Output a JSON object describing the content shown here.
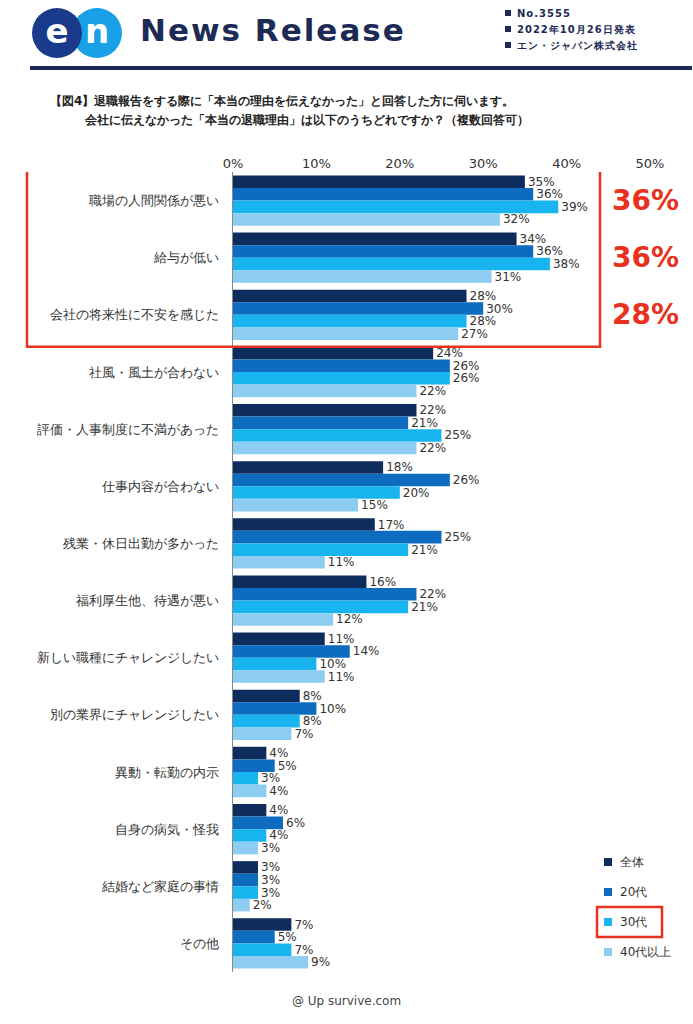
{
  "header": {
    "logo": "en",
    "title": "News Release",
    "lines": [
      "No.3555",
      "2022年10月26日発表",
      "エン・ジャパン株式会社"
    ]
  },
  "chart_data": {
    "type": "bar",
    "orientation": "horizontal",
    "title": "【図4】退職報告をする際に「本当の理由を伝えなかった」と回答した方に伺います。",
    "subtitle": "会社に伝えなかった「本当の退職理由」は以下のうちどれですか？（複数回答可）",
    "categories": [
      "職場の人間関係が悪い",
      "給与が低い",
      "会社の将来性に不安を感じた",
      "社風・風土が合わない",
      "評価・人事制度に不満があった",
      "仕事内容が合わない",
      "残業・休日出勤が多かった",
      "福利厚生他、待遇が悪い",
      "新しい職種にチャレンジしたい",
      "別の業界にチャレンジしたい",
      "異動・転勤の内示",
      "自身の病気・怪我",
      "結婚など家庭の事情",
      "その他"
    ],
    "series": [
      {
        "name": "全体",
        "color": "#0f2d5c",
        "values": [
          35,
          34,
          28,
          24,
          22,
          18,
          17,
          16,
          11,
          8,
          4,
          4,
          3,
          7
        ],
        "value_labels": [
          "35%",
          "34%",
          "28%",
          "24%",
          "22%",
          "18%",
          "17%",
          "16%",
          "11%",
          "8%",
          "4%",
          "4%",
          "3%",
          "7%"
        ]
      },
      {
        "name": "20代",
        "color": "#0d6cc0",
        "values": [
          36,
          36,
          30,
          26,
          21,
          26,
          25,
          22,
          14,
          10,
          5,
          6,
          3,
          5
        ],
        "value_labels": [
          "36%",
          "36%",
          "30%",
          "26%",
          "21%",
          "26%",
          "25%",
          "22%",
          "14%",
          "10%",
          "5%",
          "6%",
          "3%",
          "5%"
        ]
      },
      {
        "name": "30代",
        "color": "#18b4f0",
        "values": [
          39,
          38,
          28,
          26,
          25,
          20,
          21,
          21,
          10,
          8,
          3,
          4,
          3,
          7
        ],
        "value_labels": [
          "39%",
          "38%",
          "28%",
          "26%",
          "25%",
          "20%",
          "21%",
          "21%",
          "10%",
          "8%",
          "3%",
          "4%",
          "3%",
          "7%"
        ]
      },
      {
        "name": "40代以上",
        "color": "#8ecdf2",
        "values": [
          32,
          31,
          27,
          22,
          22,
          15,
          11,
          12,
          11,
          7,
          4,
          3,
          2,
          9
        ],
        "value_labels": [
          "32%",
          "31%",
          "27%",
          "22%",
          "22%",
          "15%",
          "11%",
          "12%",
          "11%",
          "7%",
          "4%",
          "3%",
          "2%",
          "9%"
        ]
      }
    ],
    "xlim": [
      0,
      50
    ],
    "xticks": [
      {
        "value": 0,
        "label": "0%"
      },
      {
        "value": 10,
        "label": "10%"
      },
      {
        "value": 20,
        "label": "20%"
      },
      {
        "value": 30,
        "label": "30%"
      },
      {
        "value": 40,
        "label": "40%"
      },
      {
        "value": 50,
        "label": "50%"
      }
    ],
    "grid": false,
    "data_labels": true,
    "legend": "lower right",
    "annotations": [
      {
        "category": "職場の人間関係が悪い",
        "text": "36%"
      },
      {
        "category": "給与が低い",
        "text": "36%"
      },
      {
        "category": "会社の将来性に不安を感じた",
        "text": "28%"
      }
    ],
    "highlight": {
      "categories": [
        "職場の人間関係が悪い",
        "給与が低い",
        "会社の将来性に不安を感じた"
      ],
      "series": "30代"
    }
  },
  "footer": "@ Up survive.com"
}
